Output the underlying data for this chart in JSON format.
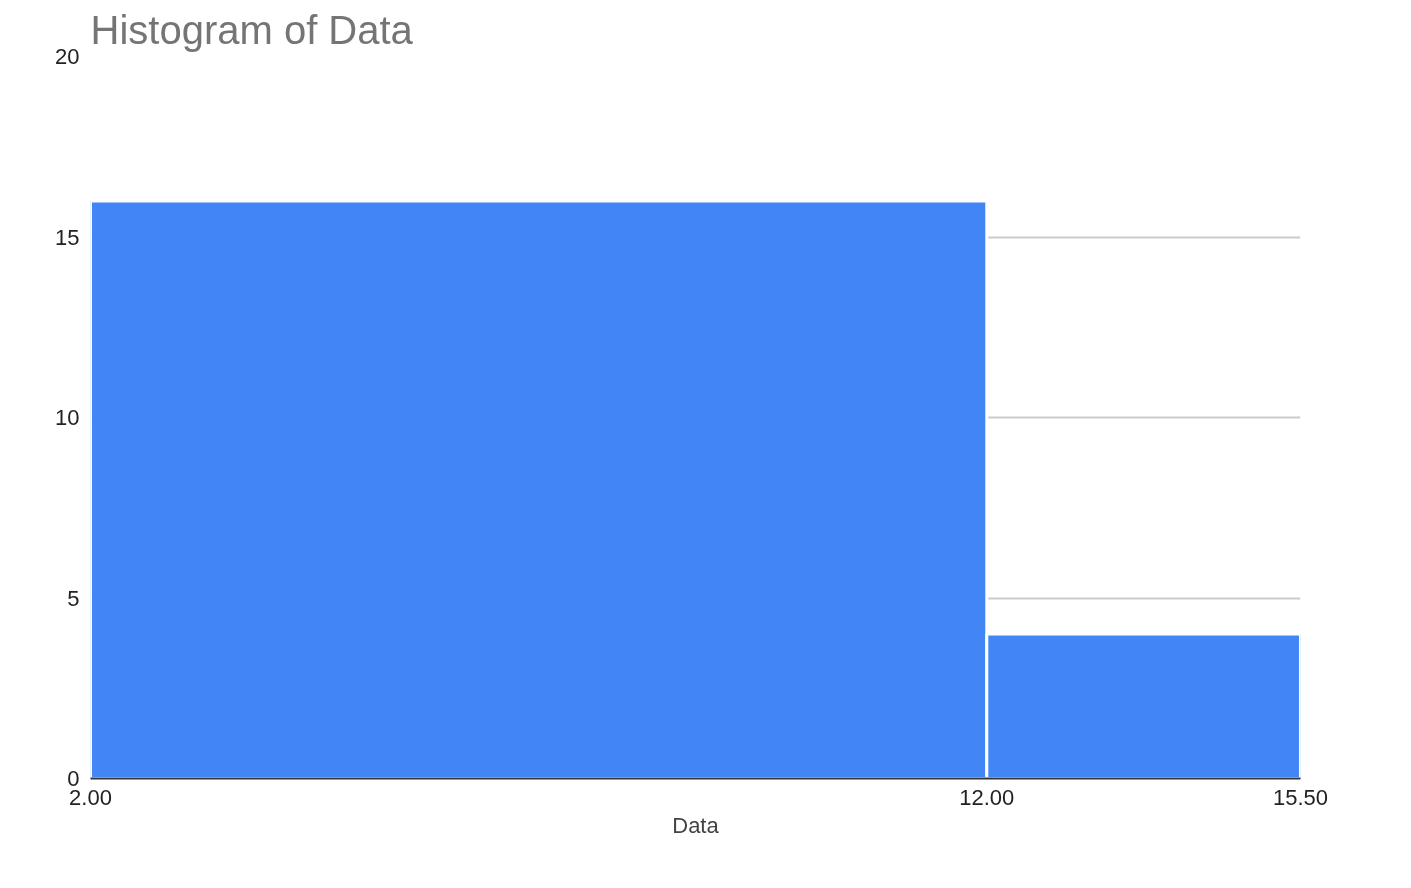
{
  "chart_data": {
    "type": "histogram",
    "title": "Histogram of Data",
    "xlabel": "Data",
    "bins": [
      2,
      12,
      15.5
    ],
    "values": [
      16,
      4
    ],
    "color": "#4285f4",
    "xlim": [
      2,
      15.5
    ],
    "xticks": [
      {
        "value": 2,
        "label": "2.00"
      },
      {
        "value": 12,
        "label": "12.00"
      },
      {
        "value": 15.5,
        "label": "15.50"
      }
    ],
    "ylim": [
      0,
      20
    ],
    "yticks": [
      0,
      5,
      10,
      15,
      20
    ],
    "grid": "y"
  }
}
